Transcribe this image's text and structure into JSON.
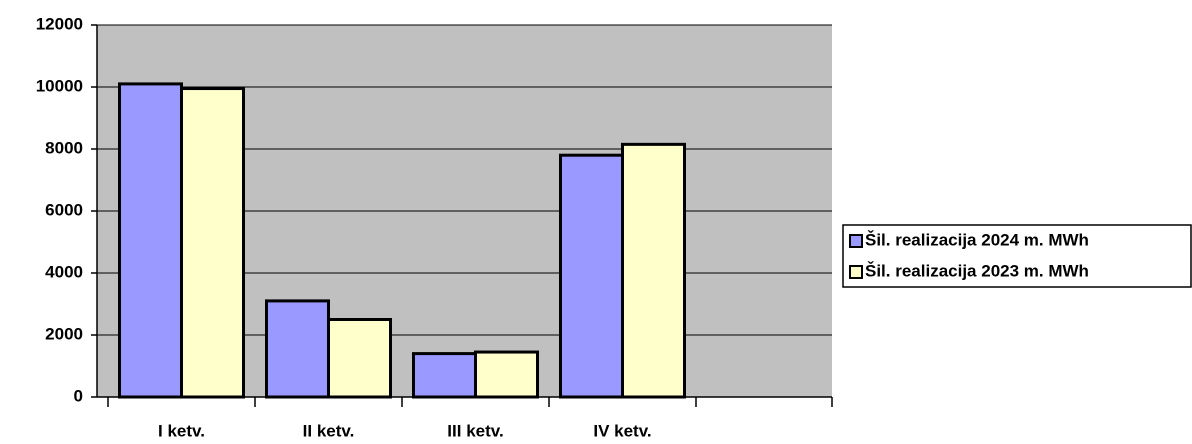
{
  "chart_data": {
    "type": "bar",
    "categories": [
      "I ketv.",
      "II ketv.",
      "III ketv.",
      "IV ketv.",
      null
    ],
    "series": [
      {
        "name": "Šil. realizacija 2024 m. MWh",
        "color": "#9999ff",
        "values": [
          10100,
          3100,
          1400,
          7800,
          null
        ]
      },
      {
        "name": "Šil. realizacija 2023 m. MWh",
        "color": "#ffffcc",
        "values": [
          9950,
          2500,
          1450,
          8150,
          null
        ]
      }
    ],
    "ylim": [
      0,
      12000
    ],
    "yticks": [
      0,
      2000,
      4000,
      6000,
      8000,
      10000,
      12000
    ],
    "grid": true,
    "plot_background": "#c0c0c0",
    "legend": "right"
  }
}
